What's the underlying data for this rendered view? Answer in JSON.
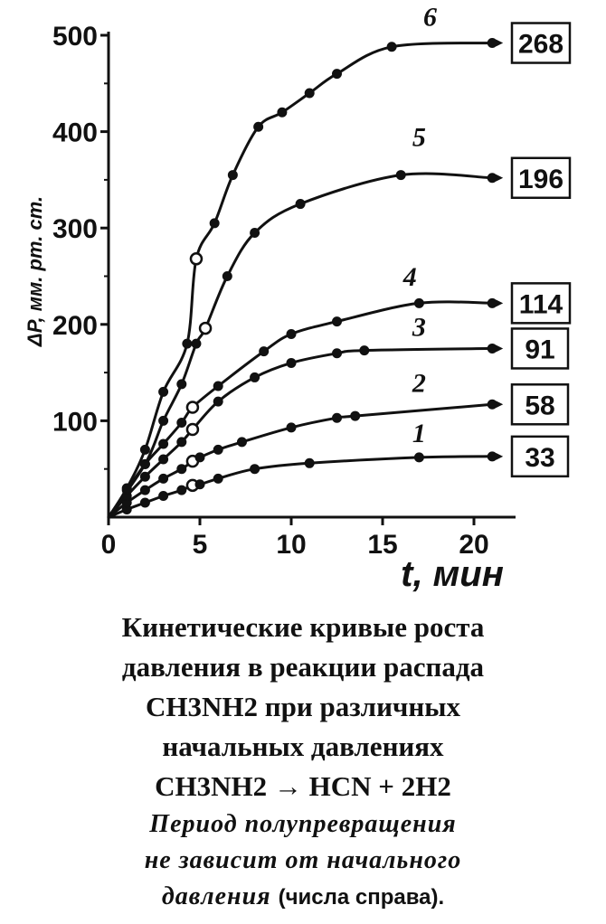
{
  "chart_data": {
    "type": "line",
    "title": "",
    "xlabel": "t, мин",
    "ylabel": "ΔP, мм. рт. ст.",
    "xlim": [
      0,
      22
    ],
    "ylim": [
      0,
      510
    ],
    "xticks": [
      0,
      5,
      10,
      15,
      20
    ],
    "yticks": [
      100,
      200,
      300,
      400,
      500
    ],
    "grid": false,
    "series": [
      {
        "name": "1",
        "box_label": "33",
        "x": [
          1,
          2,
          3,
          4,
          4.6,
          5,
          6,
          8,
          11,
          17,
          21
        ],
        "y": [
          8,
          15,
          22,
          28,
          33,
          34,
          40,
          50,
          56,
          62,
          63
        ],
        "open_marker_index": 4
      },
      {
        "name": "2",
        "box_label": "58",
        "x": [
          1,
          2,
          3,
          4,
          4.6,
          5,
          6,
          7.3,
          10,
          12.5,
          13.5,
          21
        ],
        "y": [
          15,
          28,
          40,
          50,
          58,
          62,
          70,
          78,
          93,
          103,
          105,
          117
        ],
        "open_marker_index": 4
      },
      {
        "name": "3",
        "box_label": "91",
        "x": [
          1,
          2,
          3,
          4,
          4.6,
          6,
          8,
          10,
          12.5,
          14,
          21
        ],
        "y": [
          22,
          42,
          60,
          78,
          91,
          120,
          145,
          160,
          170,
          173,
          175
        ],
        "open_marker_index": 4
      },
      {
        "name": "4",
        "box_label": "114",
        "x": [
          1,
          2,
          3,
          4,
          4.6,
          6,
          8.5,
          10,
          12.5,
          17,
          21
        ],
        "y": [
          28,
          55,
          76,
          98,
          114,
          136,
          172,
          190,
          203,
          222,
          222
        ],
        "open_marker_index": 4
      },
      {
        "name": "5",
        "box_label": "196",
        "x": [
          2,
          3,
          4,
          4.8,
          5.3,
          6.5,
          8,
          10.5,
          16,
          21
        ],
        "y": [
          55,
          100,
          138,
          180,
          196,
          250,
          295,
          325,
          355,
          352
        ],
        "open_marker_index": 4
      },
      {
        "name": "6",
        "box_label": "268",
        "x": [
          1,
          2,
          3,
          4.3,
          4.8,
          5.8,
          6.8,
          8.2,
          9.5,
          11,
          12.5,
          15.5,
          21
        ],
        "y": [
          30,
          70,
          130,
          180,
          268,
          305,
          355,
          405,
          420,
          440,
          460,
          488,
          492
        ],
        "open_marker_index": 4
      }
    ]
  },
  "caption": {
    "line1": "Кинетические кривые роста",
    "line2": "давления в реакции распада",
    "line3": "CH3NH2  при различных",
    "line4": "начальных давлениях",
    "line5": "CH3NH2 → HCN + 2H2",
    "line6": "Период полупревращения",
    "line7": "не зависит от начального",
    "line8_italic": "давления",
    "line8_plain": "(числа справа)."
  }
}
